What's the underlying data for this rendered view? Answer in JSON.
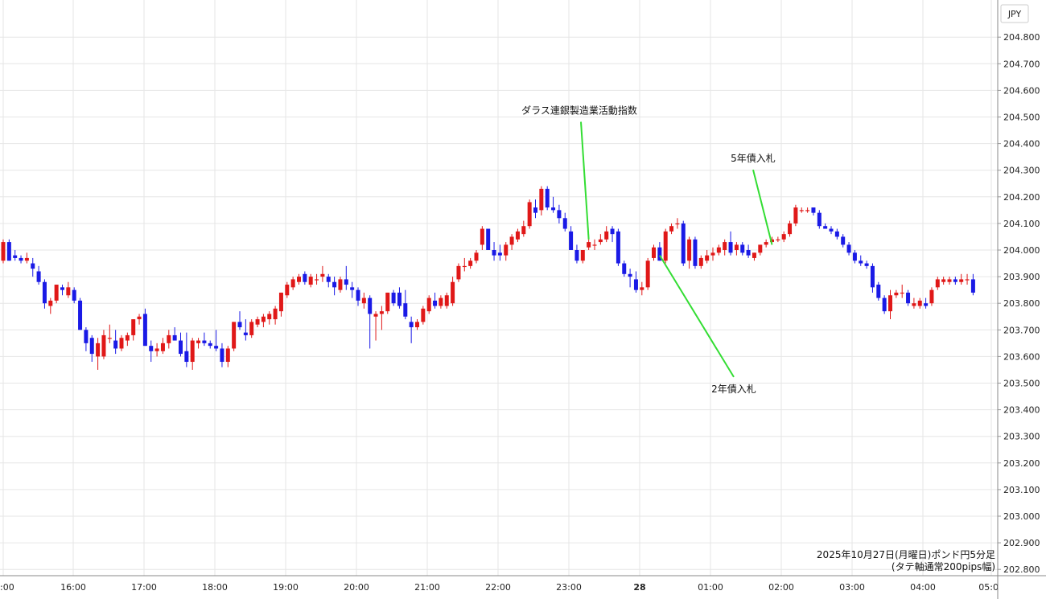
{
  "chart_data": {
    "type": "candlestick",
    "currency_label": "JPY",
    "x_ticks": [
      ":00",
      "16:00",
      "17:00",
      "18:00",
      "19:00",
      "20:00",
      "21:00",
      "22:00",
      "23:00",
      "28",
      "01:00",
      "02:00",
      "03:00",
      "04:00",
      "05:0"
    ],
    "y_ticks": [
      "204.800",
      "204.700",
      "204.600",
      "204.500",
      "204.400",
      "204.300",
      "204.200",
      "204.100",
      "204.000",
      "203.900",
      "203.800",
      "203.700",
      "203.600",
      "203.500",
      "203.400",
      "203.300",
      "203.200",
      "203.100",
      "203.000",
      "202.900",
      "202.800"
    ],
    "ylim": [
      202.78,
      204.87
    ],
    "grid": true,
    "colors": {
      "up": "#e01818",
      "down": "#1a1ae6",
      "grid": "#e6e6e6",
      "annotation_line": "#33dd33"
    },
    "candles": [
      {
        "o": 203.96,
        "h": 204.04,
        "l": 203.95,
        "c": 204.03
      },
      {
        "o": 204.03,
        "h": 204.04,
        "l": 203.96,
        "c": 203.96
      },
      {
        "o": 203.98,
        "h": 204.0,
        "l": 203.96,
        "c": 203.97
      },
      {
        "o": 203.97,
        "h": 203.98,
        "l": 203.95,
        "c": 203.96
      },
      {
        "o": 203.96,
        "h": 203.99,
        "l": 203.95,
        "c": 203.97
      },
      {
        "o": 203.95,
        "h": 203.97,
        "l": 203.9,
        "c": 203.93
      },
      {
        "o": 203.92,
        "h": 203.94,
        "l": 203.87,
        "c": 203.88
      },
      {
        "o": 203.88,
        "h": 203.89,
        "l": 203.78,
        "c": 203.8
      },
      {
        "o": 203.79,
        "h": 203.82,
        "l": 203.76,
        "c": 203.81
      },
      {
        "o": 203.81,
        "h": 203.87,
        "l": 203.8,
        "c": 203.87
      },
      {
        "o": 203.86,
        "h": 203.87,
        "l": 203.83,
        "c": 203.85
      },
      {
        "o": 203.83,
        "h": 203.88,
        "l": 203.82,
        "c": 203.86
      },
      {
        "o": 203.85,
        "h": 203.86,
        "l": 203.8,
        "c": 203.81
      },
      {
        "o": 203.81,
        "h": 203.82,
        "l": 203.7,
        "c": 203.7
      },
      {
        "o": 203.7,
        "h": 203.71,
        "l": 203.62,
        "c": 203.65
      },
      {
        "o": 203.67,
        "h": 203.68,
        "l": 203.58,
        "c": 203.61
      },
      {
        "o": 203.6,
        "h": 203.67,
        "l": 203.55,
        "c": 203.65
      },
      {
        "o": 203.6,
        "h": 203.7,
        "l": 203.59,
        "c": 203.68
      },
      {
        "o": 203.67,
        "h": 203.72,
        "l": 203.65,
        "c": 203.67
      },
      {
        "o": 203.66,
        "h": 203.7,
        "l": 203.61,
        "c": 203.63
      },
      {
        "o": 203.63,
        "h": 203.68,
        "l": 203.62,
        "c": 203.67
      },
      {
        "o": 203.66,
        "h": 203.69,
        "l": 203.64,
        "c": 203.68
      },
      {
        "o": 203.68,
        "h": 203.74,
        "l": 203.66,
        "c": 203.74
      },
      {
        "o": 203.74,
        "h": 203.76,
        "l": 203.72,
        "c": 203.75
      },
      {
        "o": 203.76,
        "h": 203.78,
        "l": 203.64,
        "c": 203.64
      },
      {
        "o": 203.64,
        "h": 203.66,
        "l": 203.58,
        "c": 203.62
      },
      {
        "o": 203.62,
        "h": 203.65,
        "l": 203.6,
        "c": 203.63
      },
      {
        "o": 203.62,
        "h": 203.67,
        "l": 203.61,
        "c": 203.65
      },
      {
        "o": 203.65,
        "h": 203.7,
        "l": 203.63,
        "c": 203.68
      },
      {
        "o": 203.68,
        "h": 203.71,
        "l": 203.66,
        "c": 203.66
      },
      {
        "o": 203.66,
        "h": 203.69,
        "l": 203.6,
        "c": 203.61
      },
      {
        "o": 203.62,
        "h": 203.69,
        "l": 203.56,
        "c": 203.58
      },
      {
        "o": 203.58,
        "h": 203.67,
        "l": 203.55,
        "c": 203.66
      },
      {
        "o": 203.65,
        "h": 203.67,
        "l": 203.63,
        "c": 203.66
      },
      {
        "o": 203.66,
        "h": 203.69,
        "l": 203.64,
        "c": 203.65
      },
      {
        "o": 203.65,
        "h": 203.66,
        "l": 203.63,
        "c": 203.64
      },
      {
        "o": 203.64,
        "h": 203.7,
        "l": 203.62,
        "c": 203.63
      },
      {
        "o": 203.63,
        "h": 203.65,
        "l": 203.56,
        "c": 203.58
      },
      {
        "o": 203.58,
        "h": 203.64,
        "l": 203.56,
        "c": 203.63
      },
      {
        "o": 203.63,
        "h": 203.73,
        "l": 203.62,
        "c": 203.73
      },
      {
        "o": 203.73,
        "h": 203.77,
        "l": 203.7,
        "c": 203.71
      },
      {
        "o": 203.69,
        "h": 203.74,
        "l": 203.66,
        "c": 203.68
      },
      {
        "o": 203.68,
        "h": 203.74,
        "l": 203.67,
        "c": 203.73
      },
      {
        "o": 203.72,
        "h": 203.75,
        "l": 203.71,
        "c": 203.74
      },
      {
        "o": 203.73,
        "h": 203.76,
        "l": 203.71,
        "c": 203.75
      },
      {
        "o": 203.74,
        "h": 203.77,
        "l": 203.72,
        "c": 203.76
      },
      {
        "o": 203.74,
        "h": 203.79,
        "l": 203.72,
        "c": 203.78
      },
      {
        "o": 203.77,
        "h": 203.84,
        "l": 203.75,
        "c": 203.84
      },
      {
        "o": 203.83,
        "h": 203.88,
        "l": 203.82,
        "c": 203.87
      },
      {
        "o": 203.86,
        "h": 203.9,
        "l": 203.85,
        "c": 203.89
      },
      {
        "o": 203.88,
        "h": 203.91,
        "l": 203.87,
        "c": 203.9
      },
      {
        "o": 203.91,
        "h": 203.92,
        "l": 203.87,
        "c": 203.88
      },
      {
        "o": 203.87,
        "h": 203.91,
        "l": 203.86,
        "c": 203.9
      },
      {
        "o": 203.89,
        "h": 203.91,
        "l": 203.87,
        "c": 203.89
      },
      {
        "o": 203.9,
        "h": 203.94,
        "l": 203.88,
        "c": 203.91
      },
      {
        "o": 203.9,
        "h": 203.91,
        "l": 203.86,
        "c": 203.88
      },
      {
        "o": 203.88,
        "h": 203.9,
        "l": 203.83,
        "c": 203.86
      },
      {
        "o": 203.85,
        "h": 203.9,
        "l": 203.84,
        "c": 203.89
      },
      {
        "o": 203.89,
        "h": 203.94,
        "l": 203.85,
        "c": 203.87
      },
      {
        "o": 203.86,
        "h": 203.88,
        "l": 203.82,
        "c": 203.85
      },
      {
        "o": 203.85,
        "h": 203.86,
        "l": 203.79,
        "c": 203.81
      },
      {
        "o": 203.8,
        "h": 203.84,
        "l": 203.78,
        "c": 203.82
      },
      {
        "o": 203.82,
        "h": 203.83,
        "l": 203.63,
        "c": 203.76
      },
      {
        "o": 203.75,
        "h": 203.77,
        "l": 203.66,
        "c": 203.76
      },
      {
        "o": 203.76,
        "h": 203.79,
        "l": 203.7,
        "c": 203.77
      },
      {
        "o": 203.77,
        "h": 203.84,
        "l": 203.76,
        "c": 203.84
      },
      {
        "o": 203.84,
        "h": 203.85,
        "l": 203.79,
        "c": 203.8
      },
      {
        "o": 203.84,
        "h": 203.86,
        "l": 203.78,
        "c": 203.79
      },
      {
        "o": 203.8,
        "h": 203.85,
        "l": 203.74,
        "c": 203.75
      },
      {
        "o": 203.73,
        "h": 203.75,
        "l": 203.65,
        "c": 203.71
      },
      {
        "o": 203.71,
        "h": 203.74,
        "l": 203.7,
        "c": 203.73
      },
      {
        "o": 203.73,
        "h": 203.79,
        "l": 203.72,
        "c": 203.78
      },
      {
        "o": 203.77,
        "h": 203.83,
        "l": 203.76,
        "c": 203.82
      },
      {
        "o": 203.81,
        "h": 203.84,
        "l": 203.78,
        "c": 203.79
      },
      {
        "o": 203.79,
        "h": 203.83,
        "l": 203.78,
        "c": 203.82
      },
      {
        "o": 203.79,
        "h": 203.84,
        "l": 203.78,
        "c": 203.83
      },
      {
        "o": 203.8,
        "h": 203.9,
        "l": 203.79,
        "c": 203.88
      },
      {
        "o": 203.89,
        "h": 203.95,
        "l": 203.88,
        "c": 203.94
      },
      {
        "o": 203.94,
        "h": 203.97,
        "l": 203.92,
        "c": 203.94
      },
      {
        "o": 203.94,
        "h": 203.97,
        "l": 203.93,
        "c": 203.96
      },
      {
        "o": 203.96,
        "h": 204.0,
        "l": 203.95,
        "c": 203.99
      },
      {
        "o": 204.02,
        "h": 204.09,
        "l": 204.0,
        "c": 204.08
      },
      {
        "o": 204.08,
        "h": 204.08,
        "l": 204.0,
        "c": 204.0
      },
      {
        "o": 204.0,
        "h": 204.03,
        "l": 203.96,
        "c": 203.98
      },
      {
        "o": 203.99,
        "h": 204.02,
        "l": 203.96,
        "c": 203.98
      },
      {
        "o": 203.98,
        "h": 204.03,
        "l": 203.96,
        "c": 204.02
      },
      {
        "o": 204.02,
        "h": 204.06,
        "l": 204.0,
        "c": 204.05
      },
      {
        "o": 204.04,
        "h": 204.08,
        "l": 204.03,
        "c": 204.07
      },
      {
        "o": 204.06,
        "h": 204.11,
        "l": 204.05,
        "c": 204.09
      },
      {
        "o": 204.09,
        "h": 204.19,
        "l": 204.08,
        "c": 204.18
      },
      {
        "o": 204.16,
        "h": 204.19,
        "l": 204.12,
        "c": 204.14
      },
      {
        "o": 204.15,
        "h": 204.24,
        "l": 204.13,
        "c": 204.23
      },
      {
        "o": 204.23,
        "h": 204.24,
        "l": 204.15,
        "c": 204.16
      },
      {
        "o": 204.16,
        "h": 204.2,
        "l": 204.14,
        "c": 204.15
      },
      {
        "o": 204.15,
        "h": 204.17,
        "l": 204.1,
        "c": 204.12
      },
      {
        "o": 204.12,
        "h": 204.14,
        "l": 204.07,
        "c": 204.08
      },
      {
        "o": 204.07,
        "h": 204.09,
        "l": 204.0,
        "c": 204.0
      },
      {
        "o": 204.0,
        "h": 204.02,
        "l": 203.95,
        "c": 203.96
      },
      {
        "o": 203.96,
        "h": 204.0,
        "l": 203.95,
        "c": 204.0
      },
      {
        "o": 204.01,
        "h": 204.04,
        "l": 204.0,
        "c": 204.03
      },
      {
        "o": 204.02,
        "h": 204.04,
        "l": 204.0,
        "c": 204.02
      },
      {
        "o": 204.03,
        "h": 204.06,
        "l": 204.02,
        "c": 204.04
      },
      {
        "o": 204.04,
        "h": 204.09,
        "l": 204.03,
        "c": 204.07
      },
      {
        "o": 204.08,
        "h": 204.09,
        "l": 204.03,
        "c": 204.06
      },
      {
        "o": 204.07,
        "h": 204.08,
        "l": 203.94,
        "c": 203.95
      },
      {
        "o": 203.95,
        "h": 203.96,
        "l": 203.9,
        "c": 203.91
      },
      {
        "o": 203.91,
        "h": 203.93,
        "l": 203.86,
        "c": 203.9
      },
      {
        "o": 203.89,
        "h": 203.92,
        "l": 203.84,
        "c": 203.85
      },
      {
        "o": 203.85,
        "h": 203.88,
        "l": 203.83,
        "c": 203.86
      },
      {
        "o": 203.86,
        "h": 203.97,
        "l": 203.85,
        "c": 203.96
      },
      {
        "o": 203.97,
        "h": 204.02,
        "l": 203.96,
        "c": 204.01
      },
      {
        "o": 204.01,
        "h": 204.03,
        "l": 203.96,
        "c": 203.96
      },
      {
        "o": 203.96,
        "h": 204.08,
        "l": 203.95,
        "c": 204.07
      },
      {
        "o": 204.07,
        "h": 204.1,
        "l": 204.06,
        "c": 204.09
      },
      {
        "o": 204.1,
        "h": 204.12,
        "l": 204.08,
        "c": 204.1
      },
      {
        "o": 204.1,
        "h": 204.11,
        "l": 203.94,
        "c": 203.95
      },
      {
        "o": 203.96,
        "h": 204.05,
        "l": 203.93,
        "c": 204.04
      },
      {
        "o": 204.04,
        "h": 204.05,
        "l": 203.93,
        "c": 203.94
      },
      {
        "o": 203.94,
        "h": 203.98,
        "l": 203.93,
        "c": 203.97
      },
      {
        "o": 203.96,
        "h": 204.0,
        "l": 203.95,
        "c": 203.98
      },
      {
        "o": 203.98,
        "h": 204.01,
        "l": 203.96,
        "c": 203.99
      },
      {
        "o": 203.99,
        "h": 204.02,
        "l": 203.98,
        "c": 204.01
      },
      {
        "o": 204.0,
        "h": 204.04,
        "l": 203.98,
        "c": 204.03
      },
      {
        "o": 204.03,
        "h": 204.07,
        "l": 203.98,
        "c": 203.99
      },
      {
        "o": 204.0,
        "h": 204.03,
        "l": 203.98,
        "c": 204.02
      },
      {
        "o": 204.02,
        "h": 204.03,
        "l": 203.98,
        "c": 203.99
      },
      {
        "o": 204.0,
        "h": 204.02,
        "l": 203.97,
        "c": 203.98
      },
      {
        "o": 203.97,
        "h": 203.99,
        "l": 203.96,
        "c": 203.99
      },
      {
        "o": 203.99,
        "h": 204.02,
        "l": 203.98,
        "c": 204.02
      },
      {
        "o": 204.02,
        "h": 204.04,
        "l": 204.01,
        "c": 204.03
      },
      {
        "o": 204.03,
        "h": 204.05,
        "l": 204.02,
        "c": 204.04
      },
      {
        "o": 204.04,
        "h": 204.05,
        "l": 204.03,
        "c": 204.04
      },
      {
        "o": 204.04,
        "h": 204.07,
        "l": 204.03,
        "c": 204.06
      },
      {
        "o": 204.06,
        "h": 204.11,
        "l": 204.05,
        "c": 204.1
      },
      {
        "o": 204.1,
        "h": 204.17,
        "l": 204.09,
        "c": 204.16
      },
      {
        "o": 204.15,
        "h": 204.16,
        "l": 204.14,
        "c": 204.15
      },
      {
        "o": 204.15,
        "h": 204.16,
        "l": 204.14,
        "c": 204.15
      },
      {
        "o": 204.16,
        "h": 204.16,
        "l": 204.13,
        "c": 204.14
      },
      {
        "o": 204.14,
        "h": 204.15,
        "l": 204.08,
        "c": 204.09
      },
      {
        "o": 204.09,
        "h": 204.1,
        "l": 204.08,
        "c": 204.08
      },
      {
        "o": 204.08,
        "h": 204.09,
        "l": 204.06,
        "c": 204.07
      },
      {
        "o": 204.07,
        "h": 204.08,
        "l": 204.04,
        "c": 204.05
      },
      {
        "o": 204.05,
        "h": 204.06,
        "l": 204.01,
        "c": 204.02
      },
      {
        "o": 204.02,
        "h": 204.03,
        "l": 203.98,
        "c": 203.99
      },
      {
        "o": 203.99,
        "h": 204.0,
        "l": 203.95,
        "c": 203.96
      },
      {
        "o": 203.96,
        "h": 203.98,
        "l": 203.94,
        "c": 203.95
      },
      {
        "o": 203.95,
        "h": 203.96,
        "l": 203.93,
        "c": 203.94
      },
      {
        "o": 203.94,
        "h": 203.95,
        "l": 203.84,
        "c": 203.86
      },
      {
        "o": 203.87,
        "h": 203.88,
        "l": 203.81,
        "c": 203.82
      },
      {
        "o": 203.82,
        "h": 203.83,
        "l": 203.76,
        "c": 203.77
      },
      {
        "o": 203.77,
        "h": 203.85,
        "l": 203.74,
        "c": 203.83
      },
      {
        "o": 203.83,
        "h": 203.85,
        "l": 203.82,
        "c": 203.84
      },
      {
        "o": 203.84,
        "h": 203.87,
        "l": 203.82,
        "c": 203.84
      },
      {
        "o": 203.84,
        "h": 203.85,
        "l": 203.79,
        "c": 203.8
      },
      {
        "o": 203.79,
        "h": 203.82,
        "l": 203.78,
        "c": 203.8
      },
      {
        "o": 203.79,
        "h": 203.82,
        "l": 203.78,
        "c": 203.81
      },
      {
        "o": 203.8,
        "h": 203.82,
        "l": 203.78,
        "c": 203.79
      },
      {
        "o": 203.8,
        "h": 203.86,
        "l": 203.79,
        "c": 203.85
      },
      {
        "o": 203.86,
        "h": 203.9,
        "l": 203.85,
        "c": 203.89
      },
      {
        "o": 203.88,
        "h": 203.9,
        "l": 203.87,
        "c": 203.89
      },
      {
        "o": 203.88,
        "h": 203.9,
        "l": 203.87,
        "c": 203.89
      },
      {
        "o": 203.89,
        "h": 203.9,
        "l": 203.87,
        "c": 203.88
      },
      {
        "o": 203.88,
        "h": 203.91,
        "l": 203.87,
        "c": 203.89
      },
      {
        "o": 203.89,
        "h": 203.91,
        "l": 203.87,
        "c": 203.89
      },
      {
        "o": 203.89,
        "h": 203.91,
        "l": 203.83,
        "c": 203.84
      }
    ],
    "annotations": [
      {
        "label": "ダラス連銀製造業活動指数",
        "candle_index": 99,
        "price": 204.04,
        "label_price": 204.5
      },
      {
        "label": "5年債入札",
        "candle_index": 130,
        "price": 204.02,
        "label_price": 204.32
      },
      {
        "label": "2年債入札",
        "candle_index": 111,
        "price": 203.98,
        "label_price": 203.52
      }
    ],
    "notes": [
      "2025年10月27日(月曜日)ポンド円5分足",
      "(タテ軸通常200pips幅)"
    ]
  }
}
